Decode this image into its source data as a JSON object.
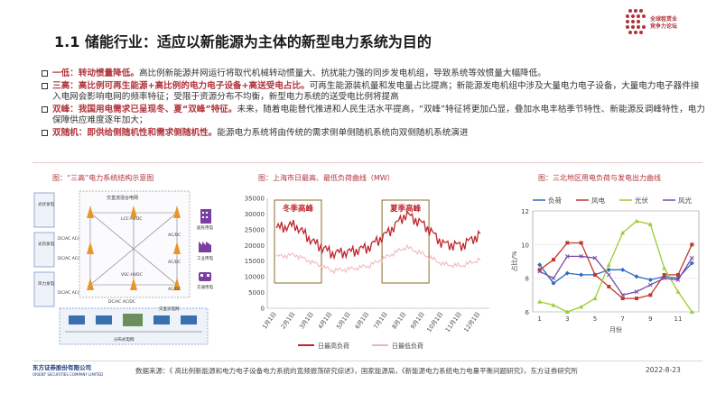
{
  "header": {
    "title": "1.1 储能行业：适应以新能源为主体的新型电力系统为目的",
    "logo_lines": [
      "全球租赁业",
      "竞争力论坛"
    ]
  },
  "bullets": [
    {
      "bold": "一低：转动惯量降低。",
      "text": "高比例新能源并网运行将取代机械转动惯量大、抗扰能力强的同步发电机组，导致系统等效惯量大幅降低。"
    },
    {
      "bold": "三高：高比例可再生能源+高比例的电力电子设备+高送受电占比。",
      "text": "可再生能源装机量和发电量占比提高；新能源发电机组中涉及大量电力电子设备，大量电力电子器件接入电网会影响电网的频率特征；受限于资源分布不均衡，新型电力系统的送受电比例将提高"
    },
    {
      "bold": "双峰：我国用电需求已呈现冬、夏“双峰”特征。",
      "text": "未来，随着电能替代推进和人民生活水平提高，“双峰”特征将更加凸显，叠加水电丰枯季节特性、新能源反调峰特性，电力保障供应难度逐年加大；"
    },
    {
      "bold": "双随机：即供给侧随机性和需求侧随机性。",
      "text": "能源电力系统将由传统的需求侧单侧随机系统向双侧随机系统演进"
    }
  ],
  "fig1": {
    "title": "图：“三高”电力系统结构示意图",
    "left_labels": [
      "光伏发电",
      "光热发电",
      "风力发电"
    ],
    "converter_labels": [
      "DC/AC AC/DC",
      "DC/AC AC/DC",
      "DC/AC AC/DC"
    ],
    "top_label": "交直流混合电网",
    "center_labels": [
      "LCC-HVDC",
      "VSC-HVDC"
    ],
    "right_converters": [
      "AC/DC",
      "AC/DC",
      "AC/DC"
    ],
    "right_labels": [
      "居民用电",
      "工业用电",
      "交通用电"
    ],
    "bottom_converter": "DC/AC AC/DC",
    "bottom_labels": [
      "交直流电网",
      "分布式电网"
    ]
  },
  "fig2": {
    "title": "图：上海市日最高、最低负荷曲线（MW）",
    "annotations": [
      "冬季高峰",
      "夏季高峰"
    ],
    "chart_data": {
      "type": "line",
      "ylim": [
        0,
        35000
      ],
      "yticks": [
        "0",
        "5000",
        "10000",
        "15000",
        "20000",
        "25000",
        "30000",
        "35000"
      ],
      "categories": [
        "1月1日",
        "2月1日",
        "3月1日",
        "4月1日",
        "5月1日",
        "6月1日",
        "7月1日",
        "8月1日",
        "9月1日",
        "10月1日",
        "11月1日",
        "12月1日"
      ],
      "series": [
        {
          "name": "日最高负荷",
          "color": "#c0262d",
          "values": [
            25500,
            26500,
            21000,
            17500,
            18000,
            19500,
            24000,
            30000,
            26500,
            20500,
            20000,
            23500
          ]
        },
        {
          "name": "日最低负荷",
          "color": "#f0b5b8",
          "values": [
            16500,
            17000,
            14500,
            12000,
            12500,
            13500,
            16500,
            19500,
            17000,
            14000,
            13500,
            15500
          ]
        }
      ]
    }
  },
  "fig3": {
    "title": "图：三北地区用电负荷与发电出力曲线",
    "chart_data": {
      "type": "line",
      "ylabel": "占比/%",
      "xlabel": "月份",
      "ylim": [
        6,
        12
      ],
      "yticks": [
        "6",
        "8",
        "10",
        "12"
      ],
      "x": [
        1,
        2,
        3,
        4,
        5,
        6,
        7,
        8,
        9,
        10,
        11,
        12
      ],
      "xticks": [
        "1",
        "3",
        "5",
        "7",
        "9",
        "11"
      ],
      "series": [
        {
          "name": "负荷",
          "color": "#2e6bbf",
          "values": [
            8.8,
            7.7,
            8.3,
            8.2,
            8.2,
            8.5,
            8.5,
            8.1,
            7.9,
            8.1,
            8.0,
            8.9
          ]
        },
        {
          "name": "风电",
          "color": "#c0392b",
          "values": [
            8.5,
            9.1,
            10.1,
            10.1,
            8.2,
            7.5,
            6.8,
            6.8,
            7.0,
            8.2,
            8.2,
            10.0
          ]
        },
        {
          "name": "光伏",
          "color": "#9acd32",
          "values": [
            6.6,
            6.4,
            6.0,
            6.3,
            6.8,
            8.8,
            10.7,
            11.4,
            11.2,
            8.6,
            7.2,
            6.0
          ]
        },
        {
          "name": "风光",
          "color": "#7b4aa8",
          "values": [
            8.4,
            8.0,
            9.3,
            9.3,
            9.2,
            8.2,
            7.0,
            7.2,
            7.6,
            8.0,
            7.9,
            9.2
          ]
        }
      ]
    }
  },
  "footer": {
    "company": "东方证券股份有限公司",
    "company_en": "ORIENT SECURITIES COMPANY LIMITED",
    "source": "数据来源：《 高比例新能源和电力电子设备电力系统的宽频振荡研究综述》，国家能源局，《新能源电力系统电力电量平衡问题研究》，东方证券研究所",
    "date": "2022-8-23"
  }
}
